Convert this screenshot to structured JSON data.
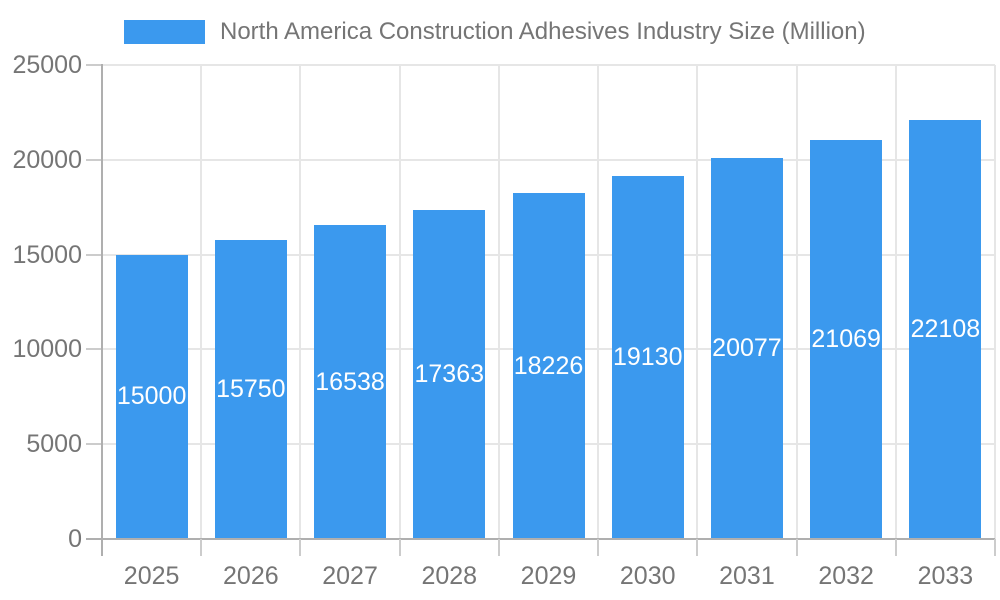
{
  "chart_data": {
    "type": "bar",
    "title": "North America Construction Adhesives Industry Size (Million)",
    "categories": [
      "2025",
      "2026",
      "2027",
      "2028",
      "2029",
      "2030",
      "2031",
      "2032",
      "2033"
    ],
    "values": [
      15000,
      15750,
      16538,
      17363,
      18226,
      19130,
      20077,
      21069,
      22108
    ],
    "bar_value_labels": [
      "15000",
      "15750",
      "16538",
      "17363",
      "18226",
      "19130",
      "20077",
      "21069",
      "22108"
    ],
    "xlabel": "",
    "ylabel": "",
    "ylim": [
      0,
      25000
    ],
    "yticks": [
      0,
      5000,
      10000,
      15000,
      20000,
      25000
    ],
    "ytick_labels": [
      "0",
      "5000",
      "10000",
      "15000",
      "20000",
      "25000"
    ],
    "grid": true,
    "legend_position": "top",
    "colors": {
      "bar": "#3B99EE",
      "tick_text": "#757575",
      "legend_text": "#757575",
      "annotation_text": "#ffffff",
      "gridline": "#E6E6E6",
      "axis": "#AFAFAF",
      "tick_mark": "#CCCCCC",
      "background": "#FFFFFF"
    }
  }
}
